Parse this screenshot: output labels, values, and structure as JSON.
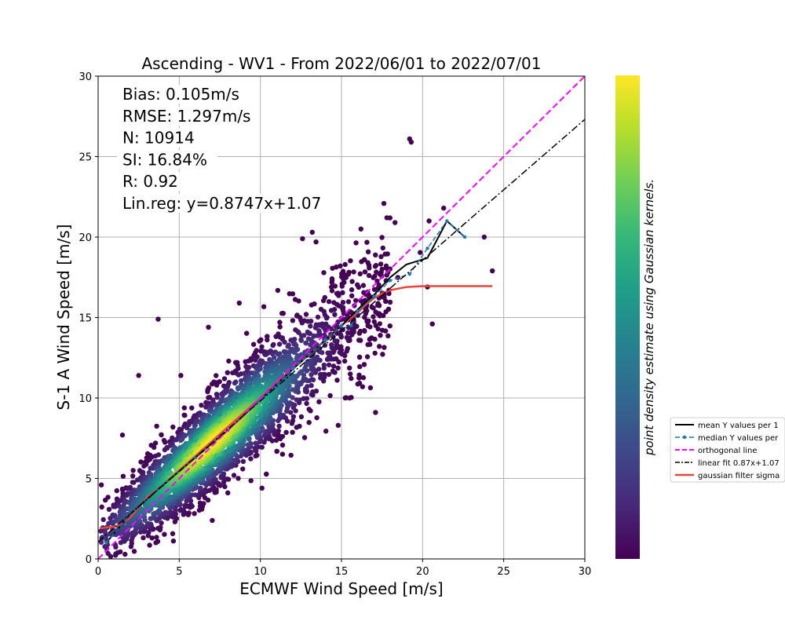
{
  "chart_data": {
    "type": "scatter",
    "title": "Ascending - WV1 - From 2022/06/01 to 2022/07/01",
    "xlabel": "ECMWF Wind Speed [m/s]",
    "ylabel": "S-1 A Wind Speed [m/s]",
    "xlim": [
      0,
      30
    ],
    "ylim": [
      0,
      30
    ],
    "xticks": [
      "0",
      "5",
      "10",
      "15",
      "20",
      "25",
      "30"
    ],
    "yticks": [
      "0",
      "5",
      "10",
      "15",
      "20",
      "25",
      "30"
    ],
    "grid": true,
    "stats": [
      "Bias: 0.105m/s",
      "RMSE: 1.297m/s",
      "N: 10914",
      "SI: 16.84%",
      "R: 0.92",
      "Lin.reg: y=0.8747x+1.07"
    ],
    "colorbar_label": "point density estimate using Gaussian kernels.",
    "colors": {
      "viridis": [
        "#440154",
        "#482878",
        "#3e4989",
        "#31688e",
        "#26828e",
        "#1f9e89",
        "#35b779",
        "#6ece58",
        "#b5de2b",
        "#fde725"
      ],
      "mean": "#000000",
      "median": "#1f77b4",
      "orthogonal": "#ff00ff",
      "linear_fit": "#000000",
      "gaussian": "#e8453c"
    },
    "legend": {
      "position": "right",
      "entries": [
        {
          "key": "mean",
          "label": "mean Y values per 1"
        },
        {
          "key": "median",
          "label": "median Y values per"
        },
        {
          "key": "orthogonal",
          "label": "orthogonal line"
        },
        {
          "key": "linear_fit",
          "label": "linear fit 0.87x+1.07"
        },
        {
          "key": "gaussian",
          "label": "gaussian filter sigma"
        }
      ]
    },
    "point_cloud": {
      "n": 10914,
      "slope": 0.8747,
      "intercept": 1.07,
      "density_peak": [
        7.0,
        7.3
      ]
    },
    "outliers": [
      [
        19.2,
        26.1
      ],
      [
        19.3,
        25.9
      ],
      [
        21.3,
        21.8
      ],
      [
        20.4,
        21.0
      ],
      [
        23.8,
        20.0
      ],
      [
        24.3,
        17.9
      ],
      [
        20.3,
        16.9
      ],
      [
        20.6,
        14.6
      ],
      [
        17.1,
        9.1
      ],
      [
        10.1,
        4.4
      ],
      [
        3.7,
        14.9
      ],
      [
        6.8,
        14.4
      ],
      [
        8.7,
        15.9
      ],
      [
        0.2,
        4.6
      ],
      [
        14.8,
        8.3
      ],
      [
        16.2,
        20.5
      ],
      [
        17.8,
        21.2
      ],
      [
        13.2,
        20.3
      ],
      [
        12.6,
        19.9
      ],
      [
        5.1,
        11.4
      ],
      [
        2.5,
        11.4
      ],
      [
        1.5,
        7.7
      ],
      [
        15.5,
        10.0
      ],
      [
        16.3,
        10.7
      ],
      [
        18.3,
        20.9
      ]
    ],
    "mean_line": {
      "x": [
        0.5,
        2,
        4,
        6,
        8,
        10,
        12,
        14,
        15,
        16,
        17,
        18,
        19,
        20.3,
        21.5,
        22.6
      ],
      "y": [
        1.0,
        2.8,
        4.6,
        6.3,
        8.0,
        9.9,
        11.8,
        13.6,
        14.5,
        15.5,
        16.4,
        17.5,
        18.3,
        18.7,
        21.0,
        20.0
      ]
    },
    "median_line": {
      "x": [
        0.5,
        2,
        4,
        6,
        8,
        10,
        12,
        14,
        15,
        15.6,
        16,
        17,
        18,
        19.2,
        20.3,
        21.5,
        22.6
      ],
      "y": [
        1.0,
        2.8,
        4.6,
        6.3,
        8.0,
        9.9,
        11.8,
        13.6,
        14.5,
        14.5,
        15.4,
        16.3,
        17.3,
        17.7,
        19.3,
        21.0,
        20.0
      ]
    },
    "orthogonal_line": {
      "x": [
        0,
        30
      ],
      "y": [
        0,
        30
      ]
    },
    "linear_fit_line": {
      "x": [
        0,
        30
      ],
      "y": [
        1.07,
        27.311
      ]
    },
    "gaussian_line": {
      "x": [
        0.1,
        0.5,
        1.0,
        1.5,
        2.0,
        2.5,
        3,
        4,
        5,
        6,
        7,
        8,
        9,
        10,
        11,
        12,
        13,
        14,
        15,
        16,
        16.5,
        17,
        17.5,
        18,
        18.5,
        19,
        20,
        21,
        22,
        23,
        24.3
      ],
      "y": [
        1.9,
        1.95,
        2.0,
        2.2,
        2.6,
        3.2,
        3.8,
        4.6,
        5.5,
        6.4,
        7.3,
        8.2,
        9.1,
        10.0,
        11.0,
        11.8,
        12.7,
        13.6,
        14.5,
        15.3,
        15.8,
        16.2,
        16.5,
        16.7,
        16.8,
        16.9,
        16.95,
        16.95,
        16.95,
        16.95,
        16.95
      ]
    }
  }
}
